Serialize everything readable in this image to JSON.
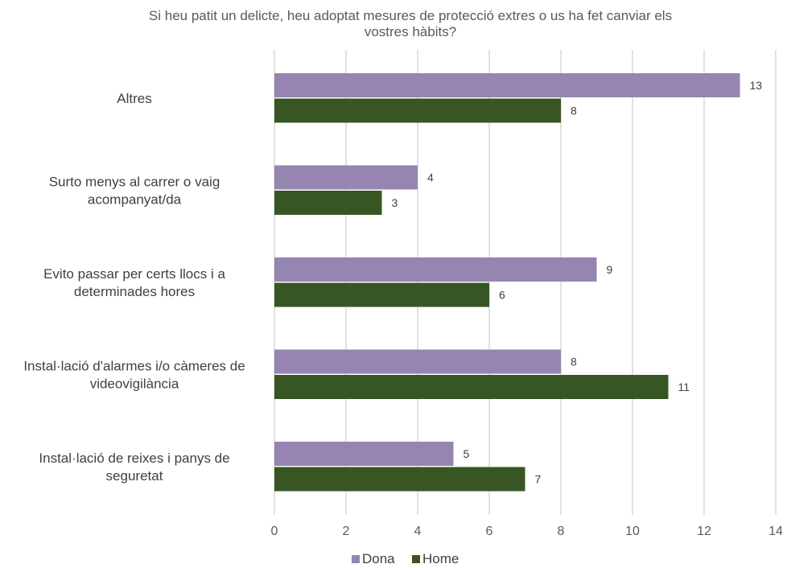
{
  "chart_data": {
    "type": "bar",
    "orientation": "horizontal",
    "title": "Si heu patit un delicte, heu adoptat mesures de protecció extres o us ha fet canviar els vostres hàbits?",
    "title_lines": [
      "Si heu patit un delicte, heu adoptat mesures de protecció extres o us ha fet canviar els",
      "vostres hàbits?"
    ],
    "categories": [
      "Altres",
      "Surto menys al carrer o vaig acompanyat/da",
      "Evito passar per certs llocs i a determinades hores",
      "Instal·lació d'alarmes i/o càmeres de videovigilància",
      "Instal·lació de reixes i panys de seguretat"
    ],
    "category_lines": [
      [
        "Altres"
      ],
      [
        "Surto menys al carrer o vaig",
        "acompanyat/da"
      ],
      [
        "Evito passar per certs llocs i a",
        "determinades hores"
      ],
      [
        "Instal·lació d'alarmes i/o càmeres de",
        "videovigilància"
      ],
      [
        "Instal·lació de reixes i panys de",
        "seguretat"
      ]
    ],
    "series": [
      {
        "name": "Dona",
        "color": "#9585b0",
        "values": [
          13,
          4,
          9,
          8,
          5
        ]
      },
      {
        "name": "Home",
        "color": "#375623",
        "values": [
          8,
          3,
          6,
          11,
          7
        ]
      }
    ],
    "xlim": [
      0,
      14
    ],
    "xticks": [
      "0",
      "2",
      "4",
      "6",
      "8",
      "10",
      "12",
      "14"
    ],
    "grid": true,
    "legend_position": "bottom"
  }
}
